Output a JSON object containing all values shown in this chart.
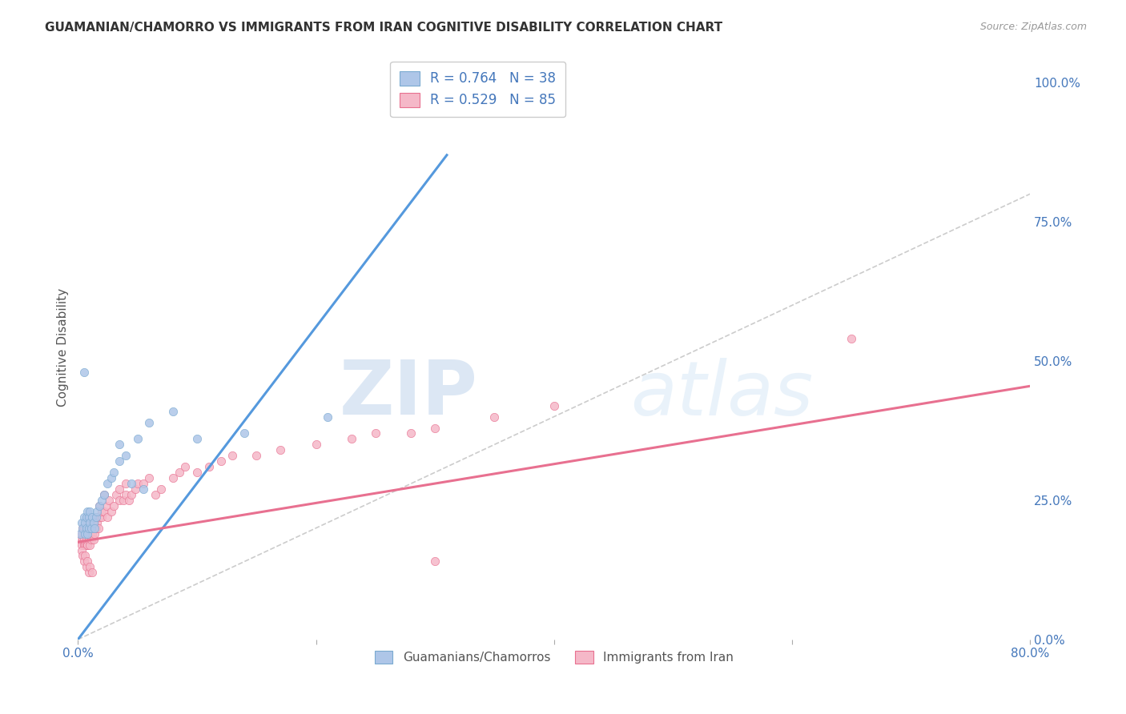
{
  "title": "GUAMANIAN/CHAMORRO VS IMMIGRANTS FROM IRAN COGNITIVE DISABILITY CORRELATION CHART",
  "source": "Source: ZipAtlas.com",
  "ylabel": "Cognitive Disability",
  "ytick_labels": [
    "0.0%",
    "25.0%",
    "50.0%",
    "75.0%",
    "100.0%"
  ],
  "ytick_values": [
    0.0,
    0.25,
    0.5,
    0.75,
    1.0
  ],
  "xlim": [
    0.0,
    0.8
  ],
  "ylim": [
    0.0,
    1.05
  ],
  "watermark_zip": "ZIP",
  "watermark_atlas": "atlas",
  "background_color": "#ffffff",
  "grid_color": "#dddddd",
  "title_color": "#333333",
  "axis_label_color": "#555555",
  "tick_color": "#4477bb",
  "legend_R_color": "#4477bb",
  "diagonal_color": "#cccccc",
  "series": [
    {
      "name": "Guamanians/Chamorros",
      "color": "#aec6e8",
      "edge_color": "#7aaad0",
      "R": 0.764,
      "N": 38,
      "trend_color": "#5599dd",
      "trend_x0": 0.0,
      "trend_y0": 0.0,
      "trend_x1": 0.31,
      "trend_y1": 0.87,
      "points_x": [
        0.002,
        0.003,
        0.004,
        0.005,
        0.005,
        0.006,
        0.006,
        0.007,
        0.007,
        0.008,
        0.008,
        0.009,
        0.009,
        0.01,
        0.01,
        0.011,
        0.012,
        0.013,
        0.014,
        0.015,
        0.016,
        0.018,
        0.02,
        0.022,
        0.025,
        0.028,
        0.03,
        0.035,
        0.04,
        0.05,
        0.06,
        0.08,
        0.1,
        0.14,
        0.21,
        0.035,
        0.045,
        0.055
      ],
      "points_y": [
        0.19,
        0.21,
        0.2,
        0.22,
        0.48,
        0.19,
        0.21,
        0.2,
        0.22,
        0.19,
        0.23,
        0.2,
        0.22,
        0.21,
        0.23,
        0.2,
        0.22,
        0.21,
        0.2,
        0.22,
        0.23,
        0.24,
        0.25,
        0.26,
        0.28,
        0.29,
        0.3,
        0.32,
        0.33,
        0.36,
        0.39,
        0.41,
        0.36,
        0.37,
        0.4,
        0.35,
        0.28,
        0.27
      ]
    },
    {
      "name": "Immigrants from Iran",
      "color": "#f5b8c8",
      "edge_color": "#e87090",
      "R": 0.529,
      "N": 85,
      "trend_color": "#e87090",
      "trend_x0": 0.0,
      "trend_y0": 0.175,
      "trend_x1": 0.8,
      "trend_y1": 0.455,
      "points_x": [
        0.002,
        0.003,
        0.003,
        0.004,
        0.004,
        0.005,
        0.005,
        0.005,
        0.006,
        0.006,
        0.007,
        0.007,
        0.007,
        0.008,
        0.008,
        0.008,
        0.009,
        0.009,
        0.01,
        0.01,
        0.01,
        0.011,
        0.011,
        0.012,
        0.012,
        0.013,
        0.013,
        0.014,
        0.014,
        0.015,
        0.015,
        0.016,
        0.017,
        0.018,
        0.018,
        0.02,
        0.02,
        0.022,
        0.022,
        0.024,
        0.025,
        0.026,
        0.028,
        0.03,
        0.032,
        0.035,
        0.035,
        0.038,
        0.04,
        0.04,
        0.043,
        0.045,
        0.048,
        0.05,
        0.055,
        0.06,
        0.065,
        0.07,
        0.08,
        0.085,
        0.09,
        0.1,
        0.11,
        0.12,
        0.13,
        0.15,
        0.17,
        0.2,
        0.23,
        0.25,
        0.28,
        0.3,
        0.35,
        0.4,
        0.003,
        0.004,
        0.005,
        0.006,
        0.007,
        0.008,
        0.009,
        0.01,
        0.012,
        0.65,
        0.3
      ],
      "points_y": [
        0.18,
        0.17,
        0.19,
        0.18,
        0.2,
        0.17,
        0.18,
        0.2,
        0.17,
        0.19,
        0.17,
        0.18,
        0.2,
        0.17,
        0.19,
        0.21,
        0.18,
        0.2,
        0.17,
        0.19,
        0.21,
        0.18,
        0.2,
        0.19,
        0.21,
        0.18,
        0.2,
        0.19,
        0.21,
        0.2,
        0.22,
        0.21,
        0.2,
        0.22,
        0.24,
        0.22,
        0.23,
        0.23,
        0.26,
        0.24,
        0.22,
        0.25,
        0.23,
        0.24,
        0.26,
        0.25,
        0.27,
        0.25,
        0.26,
        0.28,
        0.25,
        0.26,
        0.27,
        0.28,
        0.28,
        0.29,
        0.26,
        0.27,
        0.29,
        0.3,
        0.31,
        0.3,
        0.31,
        0.32,
        0.33,
        0.33,
        0.34,
        0.35,
        0.36,
        0.37,
        0.37,
        0.38,
        0.4,
        0.42,
        0.16,
        0.15,
        0.14,
        0.15,
        0.13,
        0.14,
        0.12,
        0.13,
        0.12,
        0.54,
        0.14
      ]
    }
  ]
}
